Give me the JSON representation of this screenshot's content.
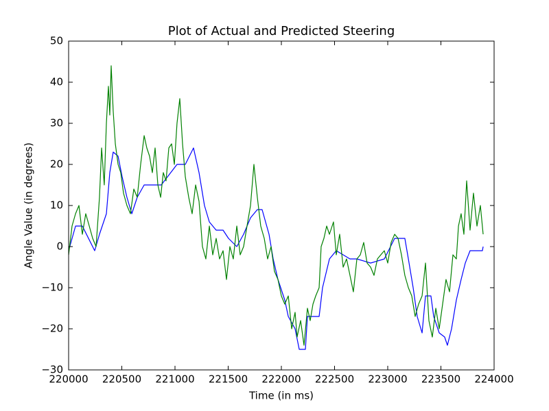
{
  "chart_data": {
    "type": "line",
    "title": "Plot of Actual and Predicted Steering",
    "x_label": "Time (in ms)",
    "y_label": "Angle Value (in degrees)",
    "xlim": [
      220000,
      224000
    ],
    "xticks": [
      220000,
      220500,
      221000,
      221500,
      222000,
      222500,
      223000,
      223500,
      224000
    ],
    "ylim": [
      -30,
      50
    ],
    "yticks": [
      {
        "value": -30,
        "label": "−30"
      },
      {
        "value": -20,
        "label": "−20"
      },
      {
        "value": -10,
        "label": "−10"
      },
      0,
      10,
      20,
      30,
      40,
      50
    ],
    "grid": false,
    "series": [
      {
        "color": "#0000ff",
        "x": [
          220000,
          220065,
          220129,
          220245,
          220290,
          220355,
          220387,
          220419,
          220465,
          220503,
          220548,
          220594,
          220645,
          220710,
          220871,
          221019,
          221097,
          221174,
          221226,
          221277,
          221323,
          221387,
          221452,
          221503,
          221581,
          221645,
          221710,
          221774,
          221819,
          221884,
          221923,
          221968,
          222032,
          222065,
          222129,
          222168,
          222226,
          222245,
          222355,
          222387,
          222452,
          222516,
          222581,
          222645,
          222710,
          222839,
          222968,
          223065,
          223161,
          223194,
          223239,
          223277,
          223323,
          223355,
          223406,
          223432,
          223484,
          223535,
          223561,
          223600,
          223645,
          223690,
          223729,
          223774,
          223890,
          223897
        ],
        "values": [
          -1,
          5,
          5,
          -1,
          3,
          8,
          18,
          23,
          22,
          17,
          12,
          8,
          12,
          15,
          15,
          20,
          20,
          24,
          18,
          10,
          6,
          4,
          4,
          2,
          0,
          3,
          7,
          9,
          9,
          3,
          -3,
          -8,
          -13,
          -17,
          -20,
          -25,
          -25,
          -17,
          -17,
          -10,
          -3,
          -1,
          -2,
          -3,
          -3,
          -4,
          -3,
          2,
          2,
          -3,
          -10,
          -17,
          -21,
          -12,
          -12,
          -17,
          -21,
          -22,
          -24,
          -20,
          -13,
          -8,
          -4,
          -1,
          -1,
          0
        ]
      },
      {
        "color": "#008000",
        "x": [
          220000,
          220032,
          220065,
          220097,
          220129,
          220161,
          220194,
          220226,
          220258,
          220290,
          220310,
          220335,
          220355,
          220374,
          220387,
          220400,
          220419,
          220439,
          220465,
          220490,
          220516,
          220548,
          220581,
          220613,
          220645,
          220677,
          220710,
          220735,
          220761,
          220787,
          220813,
          220839,
          220865,
          220890,
          220916,
          220942,
          220968,
          220994,
          221019,
          221045,
          221071,
          221097,
          221129,
          221161,
          221194,
          221226,
          221258,
          221290,
          221323,
          221355,
          221387,
          221419,
          221452,
          221484,
          221516,
          221548,
          221581,
          221613,
          221645,
          221677,
          221710,
          221742,
          221774,
          221806,
          221839,
          221871,
          221903,
          221935,
          221968,
          222000,
          222032,
          222065,
          222097,
          222129,
          222148,
          222181,
          222213,
          222245,
          222271,
          222297,
          222323,
          222355,
          222374,
          222400,
          222426,
          222452,
          222490,
          222516,
          222548,
          222581,
          222613,
          222645,
          222677,
          222710,
          222742,
          222774,
          222806,
          222839,
          222871,
          222903,
          222935,
          222968,
          223000,
          223032,
          223065,
          223097,
          223129,
          223161,
          223194,
          223226,
          223258,
          223290,
          223323,
          223355,
          223387,
          223419,
          223452,
          223484,
          223516,
          223548,
          223581,
          223613,
          223645,
          223665,
          223690,
          223716,
          223742,
          223774,
          223806,
          223839,
          223871,
          223897
        ],
        "values": [
          -2,
          5,
          8,
          10,
          3,
          8,
          5,
          2,
          0,
          12,
          24,
          15,
          30,
          39,
          32,
          44,
          33,
          25,
          20,
          18,
          13,
          10,
          8,
          14,
          12,
          20,
          27,
          24,
          22,
          18,
          24,
          15,
          12,
          18,
          16,
          24,
          25,
          20,
          30,
          36,
          25,
          17,
          12,
          8,
          15,
          11,
          0,
          -3,
          5,
          -2,
          2,
          -3,
          -1,
          -8,
          0,
          -3,
          5,
          -2,
          0,
          5,
          10,
          20,
          12,
          5,
          2,
          -3,
          0,
          -6,
          -8,
          -12,
          -14,
          -12,
          -20,
          -16,
          -22,
          -18,
          -24,
          -15,
          -18,
          -14,
          -12,
          -10,
          0,
          2,
          5,
          3,
          6,
          -2,
          3,
          -5,
          -3,
          -7,
          -11,
          -3,
          -2,
          1,
          -4,
          -5,
          -7,
          -3,
          -2,
          -1,
          -4,
          1,
          3,
          2,
          -2,
          -7,
          -10,
          -12,
          -17,
          -14,
          -12,
          -4,
          -18,
          -22,
          -15,
          -20,
          -14,
          -8,
          -11,
          -2,
          -3,
          5,
          8,
          3,
          16,
          4,
          13,
          5,
          10,
          3
        ]
      }
    ]
  }
}
